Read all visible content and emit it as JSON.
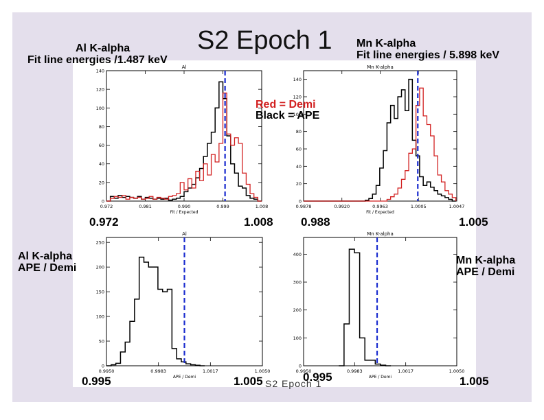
{
  "slide": {
    "title": "S2 Epoch 1",
    "footer": "S2 Epoch 1",
    "colors": {
      "background": "#e4dfec",
      "red": "#d21f1f",
      "black": "#000000",
      "blue": "#1a2ccf"
    }
  },
  "labels": {
    "al_fit": {
      "line1": "Al K-alpha",
      "line2": "Fit line energies /1.487 keV"
    },
    "mn_fit": {
      "line1": "Mn K-alpha",
      "line2": "Fit line energies / 5.898 keV"
    },
    "al_ratio": {
      "line1": "Al K-alpha",
      "line2": "APE / Demi"
    },
    "mn_ratio": {
      "line1": "Mn K-alpha",
      "line2": "APE / Demi"
    }
  },
  "legend": {
    "red": "Red = Demi",
    "black": "Black = APE"
  },
  "ranges": {
    "al_fit_min": "0.972",
    "al_fit_max": "1.008",
    "mn_fit_min": "0.988",
    "mn_fit_max": "1.005",
    "al_ratio_min": "0.995",
    "al_ratio_max": "1.005",
    "mn_ratio_min": "0.995",
    "mn_ratio_max": "1.005"
  },
  "chart_data": [
    {
      "id": "al_fit",
      "type": "histogram",
      "title": "Al",
      "xlabel": "Fit / Expected",
      "xlim": [
        0.972,
        1.008
      ],
      "ylim": [
        0,
        140
      ],
      "xticks": [
        "0.972",
        "0.981",
        "0.990",
        "0.999",
        "1.008"
      ],
      "yticks": [
        "0",
        "20",
        "40",
        "60",
        "80",
        "100",
        "120",
        "140"
      ],
      "dashed_line_x": 0.9995,
      "series": [
        {
          "name": "APE",
          "color": "black",
          "bin_width": 0.0009,
          "x": [
            0.972,
            0.9729,
            0.9738,
            0.9747,
            0.9756,
            0.9765,
            0.9774,
            0.9783,
            0.9792,
            0.9801,
            0.981,
            0.9819,
            0.9828,
            0.9837,
            0.9846,
            0.9855,
            0.9864,
            0.9873,
            0.9882,
            0.9891,
            0.99,
            0.9909,
            0.9918,
            0.9927,
            0.9936,
            0.9945,
            0.9954,
            0.9963,
            0.9972,
            0.9981,
            0.999,
            0.9999,
            1.0008,
            1.0017,
            1.0026,
            1.0035,
            1.0044,
            1.0053,
            1.0062,
            1.0071
          ],
          "values": [
            0,
            5,
            3,
            6,
            4,
            5,
            4,
            3,
            5,
            2,
            4,
            3,
            2,
            3,
            2,
            3,
            1,
            2,
            3,
            5,
            10,
            14,
            18,
            25,
            35,
            48,
            62,
            74,
            100,
            128,
            110,
            70,
            40,
            30,
            16,
            14,
            6,
            3,
            2,
            0
          ]
        },
        {
          "name": "Demi",
          "color": "red",
          "bin_width": 0.0009,
          "x": [
            0.972,
            0.9729,
            0.9738,
            0.9747,
            0.9756,
            0.9765,
            0.9774,
            0.9783,
            0.9792,
            0.9801,
            0.981,
            0.9819,
            0.9828,
            0.9837,
            0.9846,
            0.9855,
            0.9864,
            0.9873,
            0.9882,
            0.9891,
            0.99,
            0.9909,
            0.9918,
            0.9927,
            0.9936,
            0.9945,
            0.9954,
            0.9963,
            0.9972,
            0.9981,
            0.999,
            0.9999,
            1.0008,
            1.0017,
            1.0026,
            1.0035,
            1.0044,
            1.0053,
            1.0062,
            1.0071
          ],
          "values": [
            0,
            3,
            5,
            4,
            6,
            2,
            4,
            3,
            4,
            2,
            3,
            5,
            2,
            4,
            3,
            2,
            5,
            6,
            8,
            20,
            12,
            24,
            14,
            32,
            22,
            40,
            28,
            50,
            42,
            62,
            116,
            72,
            60,
            68,
            62,
            30,
            18,
            8,
            4,
            0
          ]
        }
      ]
    },
    {
      "id": "mn_fit",
      "type": "histogram",
      "title": "Mn K-alpha",
      "xlabel": "Fit / Expected",
      "xlim": [
        0.9878,
        1.0047
      ],
      "ylim": [
        0,
        150
      ],
      "xticks": [
        "0.9878",
        "0.9920",
        "0.9963",
        "1.0005",
        "1.0047"
      ],
      "yticks": [
        "0",
        "20",
        "40",
        "60",
        "80",
        "100",
        "120",
        "140"
      ],
      "dashed_line_x": 1.0004,
      "series": [
        {
          "name": "APE",
          "color": "black",
          "bin_width": 0.0004,
          "x": [
            0.9878,
            0.9882,
            0.9886,
            0.989,
            0.9894,
            0.9898,
            0.9902,
            0.9906,
            0.991,
            0.9914,
            0.9918,
            0.9922,
            0.9926,
            0.993,
            0.9934,
            0.9938,
            0.9942,
            0.9946,
            0.995,
            0.9954,
            0.9958,
            0.9962,
            0.9966,
            0.997,
            0.9974,
            0.9978,
            0.9982,
            0.9986,
            0.999,
            0.9994,
            0.9998,
            1.0002,
            1.0006,
            1.001,
            1.0014,
            1.0018,
            1.0022,
            1.0026,
            1.003,
            1.0034,
            1.0038,
            1.0042
          ],
          "values": [
            0,
            0,
            0,
            0,
            0,
            0,
            0,
            0,
            0,
            0,
            0,
            0,
            0,
            0,
            0,
            0,
            0,
            1,
            3,
            8,
            18,
            38,
            58,
            90,
            110,
            95,
            120,
            128,
            104,
            140,
            70,
            52,
            28,
            18,
            22,
            16,
            12,
            8,
            6,
            4,
            2,
            0
          ]
        },
        {
          "name": "Demi",
          "color": "red",
          "bin_width": 0.0004,
          "x": [
            0.9878,
            0.9882,
            0.9886,
            0.989,
            0.9894,
            0.9898,
            0.9902,
            0.9906,
            0.991,
            0.9914,
            0.9918,
            0.9922,
            0.9926,
            0.993,
            0.9934,
            0.9938,
            0.9942,
            0.9946,
            0.995,
            0.9954,
            0.9958,
            0.9962,
            0.9966,
            0.997,
            0.9974,
            0.9978,
            0.9982,
            0.9986,
            0.999,
            0.9994,
            0.9998,
            1.0002,
            1.0006,
            1.001,
            1.0014,
            1.0018,
            1.0022,
            1.0026,
            1.003,
            1.0034,
            1.0038,
            1.0042
          ],
          "values": [
            0,
            0,
            0,
            0,
            0,
            0,
            0,
            0,
            0,
            0,
            0,
            0,
            0,
            0,
            0,
            0,
            0,
            0,
            0,
            0,
            0,
            0,
            0,
            2,
            5,
            8,
            15,
            25,
            35,
            55,
            60,
            110,
            130,
            98,
            88,
            75,
            52,
            30,
            22,
            12,
            8,
            4
          ]
        }
      ]
    },
    {
      "id": "al_ratio",
      "type": "histogram",
      "title": "Al",
      "xlabel": "APE / Demi",
      "xlim": [
        0.995,
        1.005
      ],
      "ylim": [
        0,
        260
      ],
      "xticks": [
        "0.9950",
        "0.9983",
        "1.0017",
        "1.0050"
      ],
      "yticks": [
        "0",
        "50",
        "100",
        "150",
        "200",
        "250"
      ],
      "dashed_line_x": 1.0,
      "series": [
        {
          "name": "APE / Demi",
          "color": "black",
          "bin_width": 0.0003,
          "x": [
            0.995,
            0.9953,
            0.9956,
            0.9959,
            0.9962,
            0.9965,
            0.9968,
            0.9971,
            0.9974,
            0.9977,
            0.998,
            0.9983,
            0.9986,
            0.9989,
            0.9992,
            0.9995,
            0.9998,
            1.0001,
            1.0004,
            1.0007,
            1.001
          ],
          "values": [
            0,
            2,
            5,
            28,
            48,
            90,
            135,
            220,
            210,
            200,
            200,
            155,
            150,
            155,
            35,
            14,
            8,
            4,
            2,
            1,
            0
          ]
        }
      ]
    },
    {
      "id": "mn_ratio",
      "type": "histogram",
      "title": "Mn K-alpha",
      "xlabel": "APE / Demi",
      "xlim": [
        0.995,
        1.005
      ],
      "ylim": [
        0,
        460
      ],
      "xticks": [
        "0.9950",
        "0.9983",
        "1.0017",
        "1.0050"
      ],
      "yticks": [
        "0",
        "100",
        "200",
        "300",
        "400"
      ],
      "dashed_line_x": 0.9998,
      "series": [
        {
          "name": "APE / Demi",
          "color": "black",
          "bin_width": 0.00034,
          "x": [
            0.9973,
            0.99764,
            0.99798,
            0.99832,
            0.99866,
            0.999,
            0.99934,
            0.99968,
            1.00002,
            1.00036
          ],
          "values": [
            0,
            150,
            418,
            405,
            100,
            20,
            20,
            6,
            2,
            0
          ]
        }
      ]
    }
  ]
}
